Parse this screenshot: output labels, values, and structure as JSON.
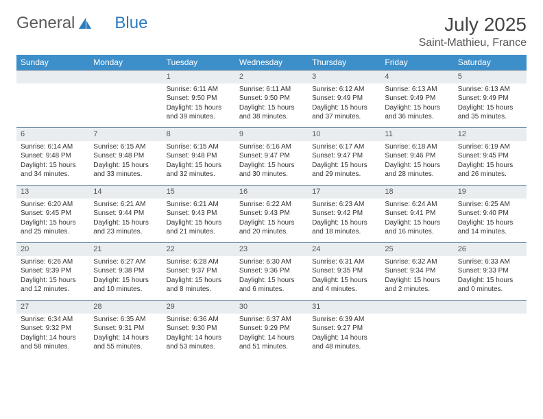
{
  "logo": {
    "part1": "General",
    "part2": "Blue"
  },
  "title": "July 2025",
  "location": "Saint-Mathieu, France",
  "styles": {
    "header_bg": "#3d8fc9",
    "header_text": "#ffffff",
    "daynum_bg": "#e9edf0",
    "row_border": "#5b7a96",
    "body_text": "#333333",
    "title_fontsize": 28,
    "location_fontsize": 16,
    "cell_fontsize": 10
  },
  "weekdays": [
    "Sunday",
    "Monday",
    "Tuesday",
    "Wednesday",
    "Thursday",
    "Friday",
    "Saturday"
  ],
  "weeks": [
    [
      {
        "n": "",
        "sr": "",
        "ss": "",
        "dl": ""
      },
      {
        "n": "",
        "sr": "",
        "ss": "",
        "dl": ""
      },
      {
        "n": "1",
        "sr": "Sunrise: 6:11 AM",
        "ss": "Sunset: 9:50 PM",
        "dl": "Daylight: 15 hours and 39 minutes."
      },
      {
        "n": "2",
        "sr": "Sunrise: 6:11 AM",
        "ss": "Sunset: 9:50 PM",
        "dl": "Daylight: 15 hours and 38 minutes."
      },
      {
        "n": "3",
        "sr": "Sunrise: 6:12 AM",
        "ss": "Sunset: 9:49 PM",
        "dl": "Daylight: 15 hours and 37 minutes."
      },
      {
        "n": "4",
        "sr": "Sunrise: 6:13 AM",
        "ss": "Sunset: 9:49 PM",
        "dl": "Daylight: 15 hours and 36 minutes."
      },
      {
        "n": "5",
        "sr": "Sunrise: 6:13 AM",
        "ss": "Sunset: 9:49 PM",
        "dl": "Daylight: 15 hours and 35 minutes."
      }
    ],
    [
      {
        "n": "6",
        "sr": "Sunrise: 6:14 AM",
        "ss": "Sunset: 9:48 PM",
        "dl": "Daylight: 15 hours and 34 minutes."
      },
      {
        "n": "7",
        "sr": "Sunrise: 6:15 AM",
        "ss": "Sunset: 9:48 PM",
        "dl": "Daylight: 15 hours and 33 minutes."
      },
      {
        "n": "8",
        "sr": "Sunrise: 6:15 AM",
        "ss": "Sunset: 9:48 PM",
        "dl": "Daylight: 15 hours and 32 minutes."
      },
      {
        "n": "9",
        "sr": "Sunrise: 6:16 AM",
        "ss": "Sunset: 9:47 PM",
        "dl": "Daylight: 15 hours and 30 minutes."
      },
      {
        "n": "10",
        "sr": "Sunrise: 6:17 AM",
        "ss": "Sunset: 9:47 PM",
        "dl": "Daylight: 15 hours and 29 minutes."
      },
      {
        "n": "11",
        "sr": "Sunrise: 6:18 AM",
        "ss": "Sunset: 9:46 PM",
        "dl": "Daylight: 15 hours and 28 minutes."
      },
      {
        "n": "12",
        "sr": "Sunrise: 6:19 AM",
        "ss": "Sunset: 9:45 PM",
        "dl": "Daylight: 15 hours and 26 minutes."
      }
    ],
    [
      {
        "n": "13",
        "sr": "Sunrise: 6:20 AM",
        "ss": "Sunset: 9:45 PM",
        "dl": "Daylight: 15 hours and 25 minutes."
      },
      {
        "n": "14",
        "sr": "Sunrise: 6:21 AM",
        "ss": "Sunset: 9:44 PM",
        "dl": "Daylight: 15 hours and 23 minutes."
      },
      {
        "n": "15",
        "sr": "Sunrise: 6:21 AM",
        "ss": "Sunset: 9:43 PM",
        "dl": "Daylight: 15 hours and 21 minutes."
      },
      {
        "n": "16",
        "sr": "Sunrise: 6:22 AM",
        "ss": "Sunset: 9:43 PM",
        "dl": "Daylight: 15 hours and 20 minutes."
      },
      {
        "n": "17",
        "sr": "Sunrise: 6:23 AM",
        "ss": "Sunset: 9:42 PM",
        "dl": "Daylight: 15 hours and 18 minutes."
      },
      {
        "n": "18",
        "sr": "Sunrise: 6:24 AM",
        "ss": "Sunset: 9:41 PM",
        "dl": "Daylight: 15 hours and 16 minutes."
      },
      {
        "n": "19",
        "sr": "Sunrise: 6:25 AM",
        "ss": "Sunset: 9:40 PM",
        "dl": "Daylight: 15 hours and 14 minutes."
      }
    ],
    [
      {
        "n": "20",
        "sr": "Sunrise: 6:26 AM",
        "ss": "Sunset: 9:39 PM",
        "dl": "Daylight: 15 hours and 12 minutes."
      },
      {
        "n": "21",
        "sr": "Sunrise: 6:27 AM",
        "ss": "Sunset: 9:38 PM",
        "dl": "Daylight: 15 hours and 10 minutes."
      },
      {
        "n": "22",
        "sr": "Sunrise: 6:28 AM",
        "ss": "Sunset: 9:37 PM",
        "dl": "Daylight: 15 hours and 8 minutes."
      },
      {
        "n": "23",
        "sr": "Sunrise: 6:30 AM",
        "ss": "Sunset: 9:36 PM",
        "dl": "Daylight: 15 hours and 6 minutes."
      },
      {
        "n": "24",
        "sr": "Sunrise: 6:31 AM",
        "ss": "Sunset: 9:35 PM",
        "dl": "Daylight: 15 hours and 4 minutes."
      },
      {
        "n": "25",
        "sr": "Sunrise: 6:32 AM",
        "ss": "Sunset: 9:34 PM",
        "dl": "Daylight: 15 hours and 2 minutes."
      },
      {
        "n": "26",
        "sr": "Sunrise: 6:33 AM",
        "ss": "Sunset: 9:33 PM",
        "dl": "Daylight: 15 hours and 0 minutes."
      }
    ],
    [
      {
        "n": "27",
        "sr": "Sunrise: 6:34 AM",
        "ss": "Sunset: 9:32 PM",
        "dl": "Daylight: 14 hours and 58 minutes."
      },
      {
        "n": "28",
        "sr": "Sunrise: 6:35 AM",
        "ss": "Sunset: 9:31 PM",
        "dl": "Daylight: 14 hours and 55 minutes."
      },
      {
        "n": "29",
        "sr": "Sunrise: 6:36 AM",
        "ss": "Sunset: 9:30 PM",
        "dl": "Daylight: 14 hours and 53 minutes."
      },
      {
        "n": "30",
        "sr": "Sunrise: 6:37 AM",
        "ss": "Sunset: 9:29 PM",
        "dl": "Daylight: 14 hours and 51 minutes."
      },
      {
        "n": "31",
        "sr": "Sunrise: 6:39 AM",
        "ss": "Sunset: 9:27 PM",
        "dl": "Daylight: 14 hours and 48 minutes."
      },
      {
        "n": "",
        "sr": "",
        "ss": "",
        "dl": ""
      },
      {
        "n": "",
        "sr": "",
        "ss": "",
        "dl": ""
      }
    ]
  ]
}
